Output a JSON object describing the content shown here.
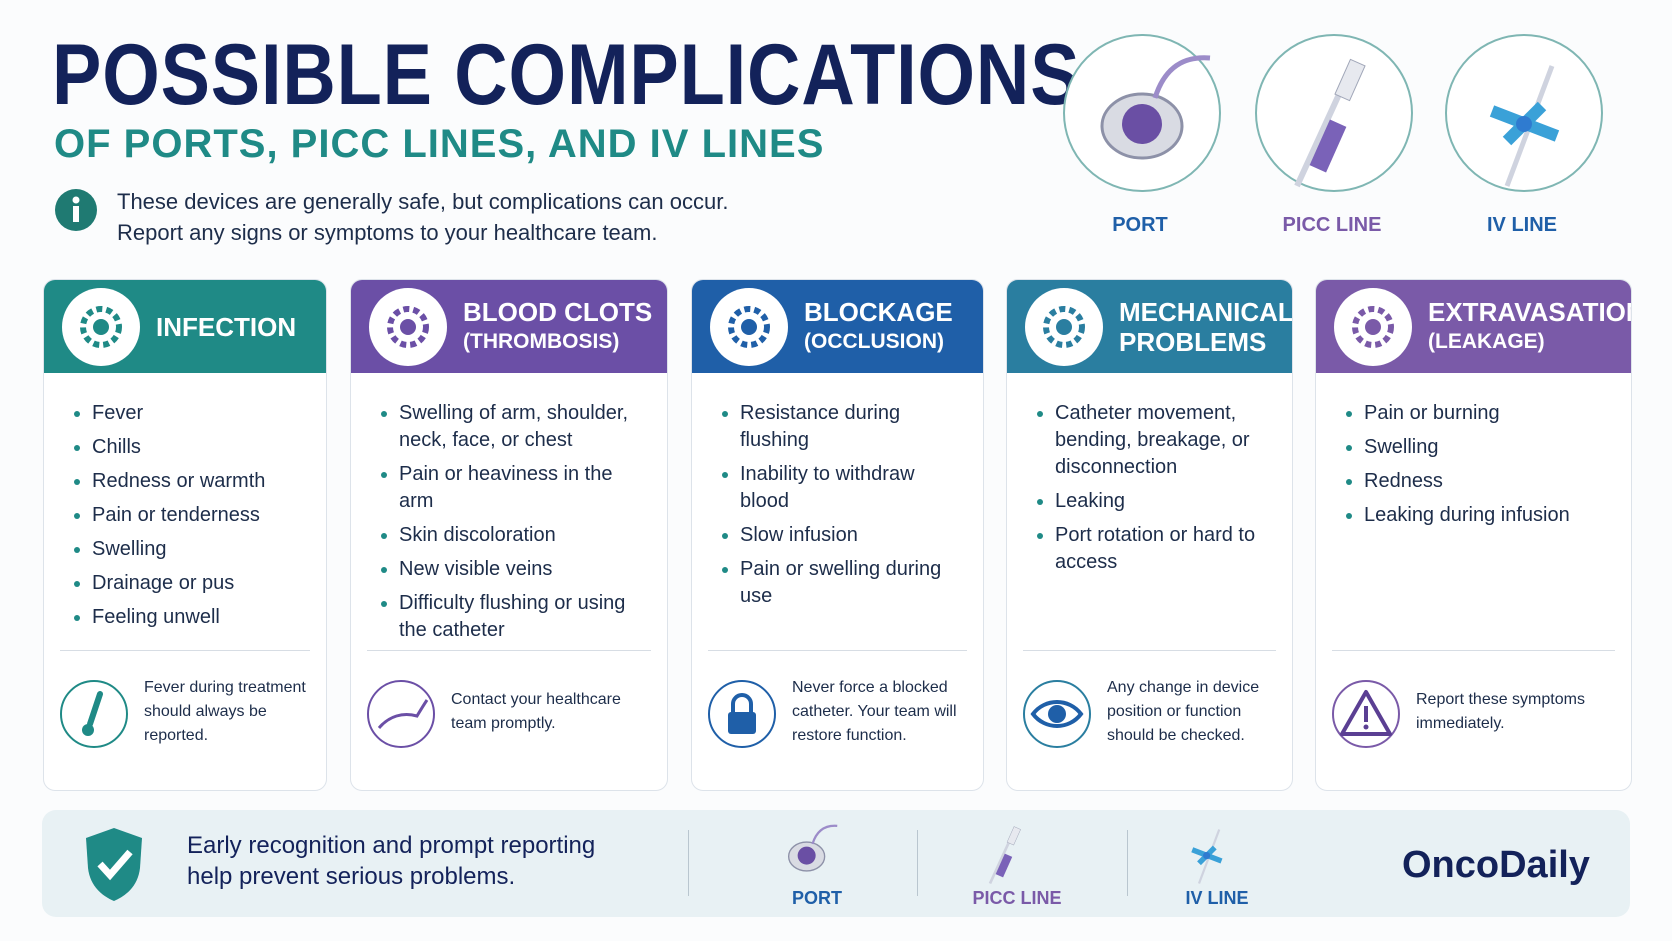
{
  "header": {
    "title": "POSSIBLE COMPLICATIONS",
    "subtitle": "OF PORTS, PICC LINES, AND IV LINES",
    "note": [
      "These devices are generally safe, but complications can occur.",
      "Report any signs or symptoms to your healthcare team."
    ]
  },
  "devices": [
    "PORT",
    "PICC LINE",
    "IV LINE"
  ],
  "cards": [
    {
      "title": "INFECTION",
      "color": "#1f8a86",
      "items": [
        "Fever",
        "Chills",
        "Redness or warmth",
        "Pain or tenderness",
        "Swelling",
        "Drainage or pus",
        "Feeling unwell"
      ],
      "note": "Fever during treatment should always be reported."
    },
    {
      "title": "BLOOD CLOTS",
      "subtitle": "(THROMBOSIS)",
      "color": "#6b4fa6",
      "items": [
        "Swelling of arm, shoulder, neck, face, or chest",
        "Pain or heaviness in the arm",
        "Skin discoloration",
        "New visible veins",
        "Difficulty flushing or using the catheter"
      ],
      "note": "Contact your healthcare team promptly."
    },
    {
      "title": "BLOCKAGE",
      "subtitle": "(OCCLUSION)",
      "color": "#1f5fa8",
      "items": [
        "Resistance during flushing",
        "Inability to withdraw blood",
        "Slow infusion",
        "Pain or swelling during use"
      ],
      "note": "Never force a blocked catheter. Your team will restore function."
    },
    {
      "title": "MECHANICAL PROBLEMS",
      "color": "#2a7ea0",
      "items": [
        "Catheter movement, bending, breakage, or disconnection",
        "Leaking",
        "Port rotation or hard to access"
      ],
      "note": "Any change in device position or function should be checked."
    },
    {
      "title": "EXTRAVASATION",
      "subtitle": "(LEAKAGE)",
      "color": "#7a5aa8",
      "items": [
        "Pain or burning",
        "Swelling",
        "Redness",
        "Leaking during infusion"
      ],
      "note": "Report these symptoms immediately."
    }
  ],
  "footer": {
    "message": "Early recognition and prompt reporting help prevent serious problems.",
    "devices": [
      "PORT",
      "PICC LINE",
      "IV LINE"
    ],
    "brand": "OncoDaily"
  }
}
